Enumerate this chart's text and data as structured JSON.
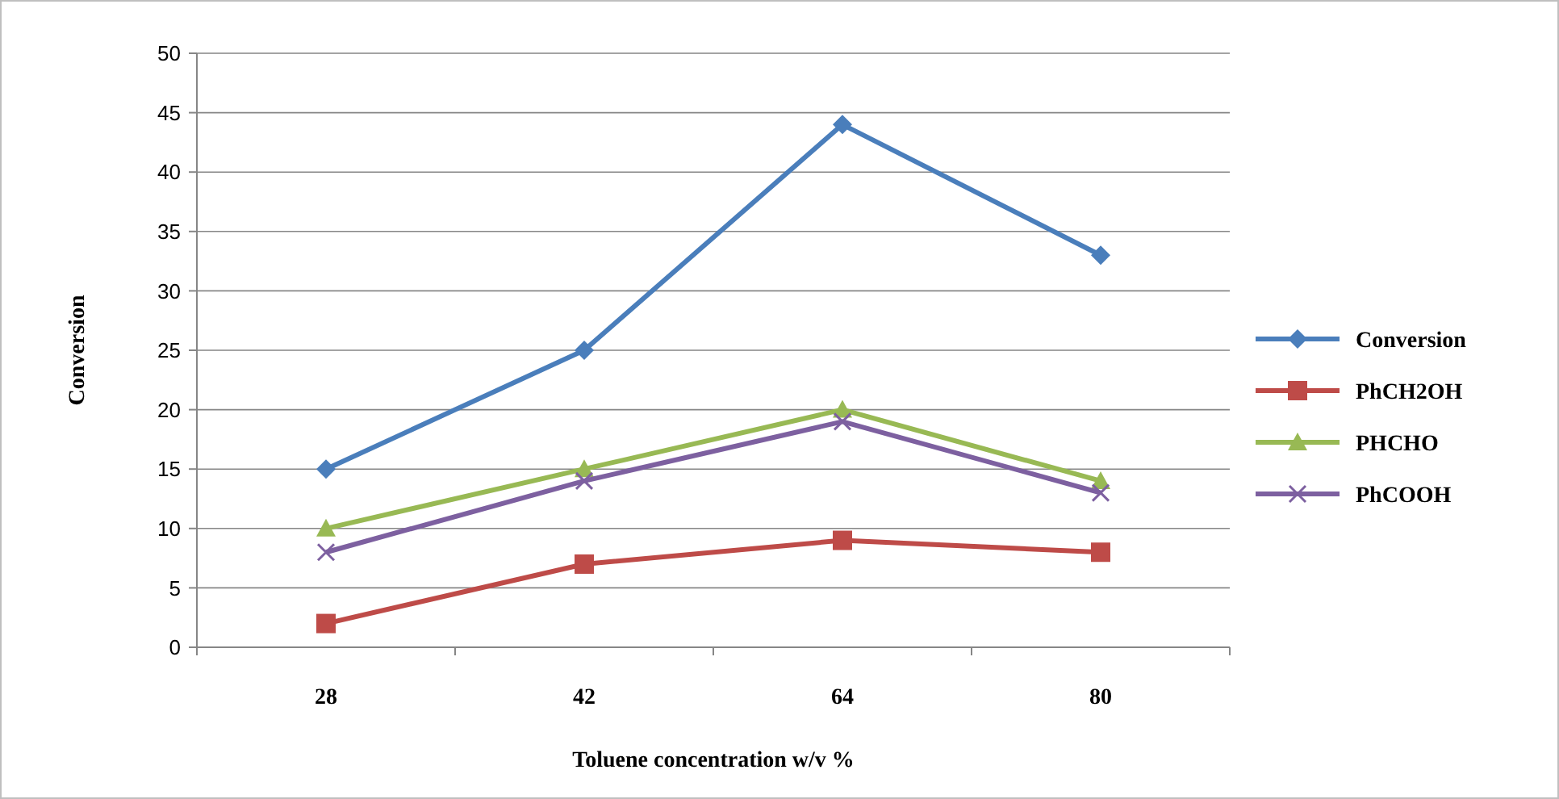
{
  "chart_data": {
    "type": "line",
    "xlabel": "Toluene concentration w/v %",
    "ylabel": "Conversion",
    "categories": [
      "28",
      "42",
      "64",
      "80"
    ],
    "series": [
      {
        "name": "Conversion",
        "color": "#4a7ebb",
        "values": [
          15,
          25,
          44,
          33
        ],
        "marker": "diamond"
      },
      {
        "name": "PhCH2OH",
        "color": "#be4b48",
        "values": [
          2,
          7,
          9,
          8
        ],
        "marker": "square"
      },
      {
        "name": "PHCHO",
        "color": "#98b954",
        "values": [
          10,
          15,
          20,
          14
        ],
        "marker": "triangle"
      },
      {
        "name": "PhCOOH",
        "color": "#7d60a0",
        "values": [
          8,
          14,
          19,
          13
        ],
        "marker": "cross"
      }
    ],
    "ylim": [
      0,
      50
    ],
    "yticks": [
      0,
      5,
      10,
      15,
      20,
      25,
      30,
      35,
      40,
      45,
      50
    ],
    "grid": "y",
    "legend": "right"
  }
}
